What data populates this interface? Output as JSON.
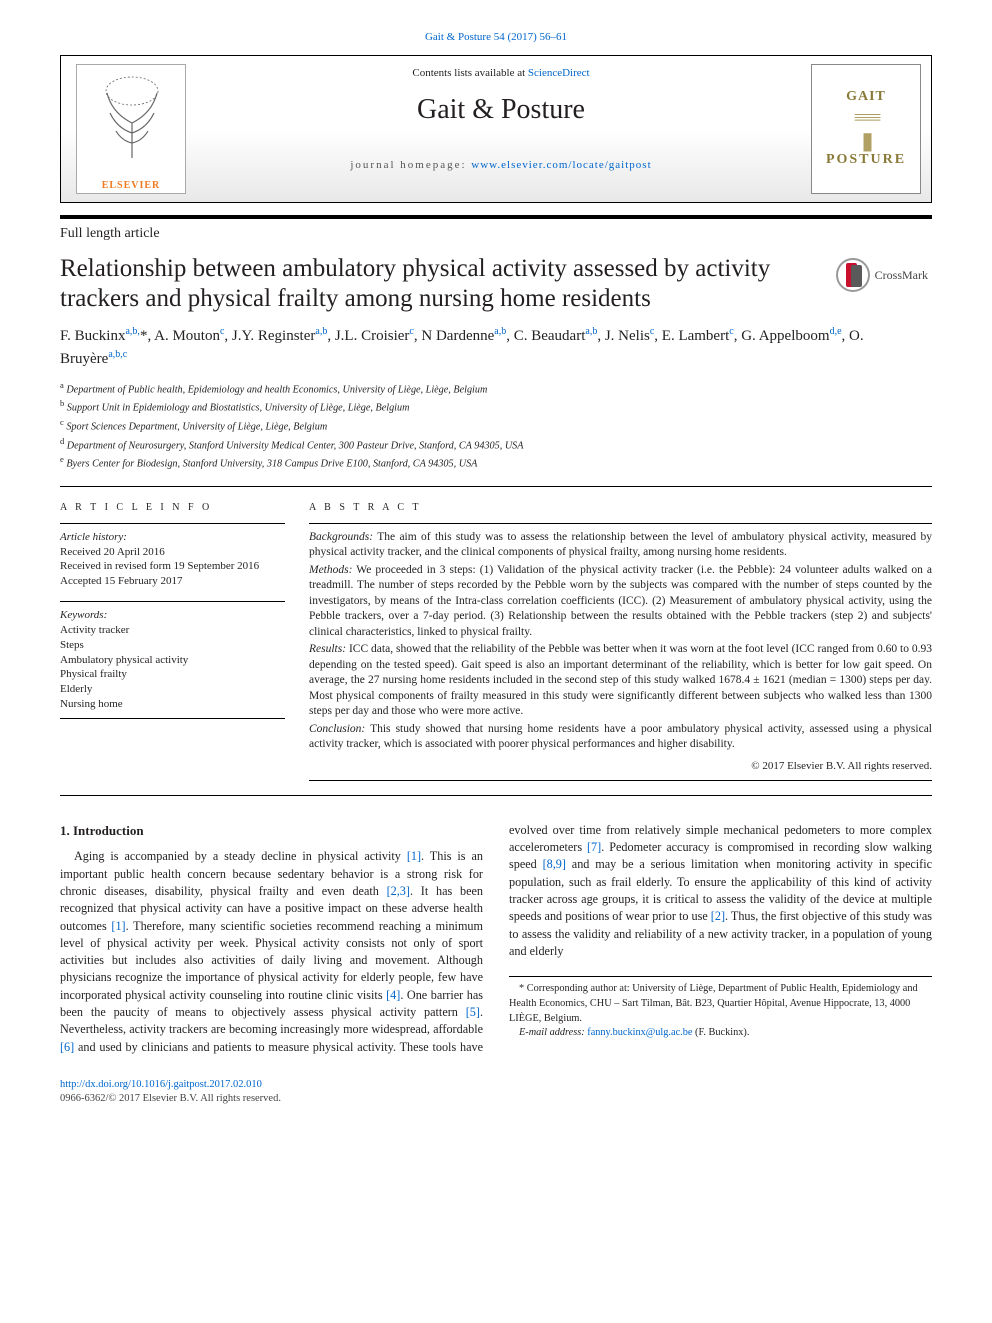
{
  "header": {
    "journal_ref": "Gait & Posture 54 (2017) 56–61",
    "contents_prefix": "Contents lists available at ",
    "contents_link": "ScienceDirect",
    "journal_name": "Gait & Posture",
    "homepage_prefix": "journal homepage: ",
    "homepage_url": "www.elsevier.com/locate/gaitpost",
    "publisher_label": "ELSEVIER",
    "cover_line1": "GAIT",
    "cover_line2": "POSTURE"
  },
  "article": {
    "type_label": "Full length article",
    "title": "Relationship between ambulatory physical activity assessed by activity trackers and physical frailty among nursing home residents",
    "crossmark_label": "CrossMark"
  },
  "authors_html": "F. Buckinx<sup>a,b,</sup>*, A. Mouton<sup>c</sup>, J.Y. Reginster<sup>a,b</sup>, J.L. Croisier<sup>c</sup>, N Dardenne<sup>a,b</sup>, C. Beaudart<sup>a,b</sup>, J. Nelis<sup>c</sup>, E. Lambert<sup>c</sup>, G. Appelboom<sup>d,e</sup>, O. Bruyère<sup>a,b,c</sup>",
  "affiliations": [
    {
      "key": "a",
      "text": "Department of Public health, Epidemiology and health Economics, University of Liège, Liège, Belgium"
    },
    {
      "key": "b",
      "text": "Support Unit in Epidemiology and Biostatistics, University of Liège, Liège, Belgium"
    },
    {
      "key": "c",
      "text": "Sport Sciences Department, University of Liège, Liège, Belgium"
    },
    {
      "key": "d",
      "text": "Department of Neurosurgery, Stanford University Medical Center, 300 Pasteur Drive, Stanford, CA 94305, USA"
    },
    {
      "key": "e",
      "text": "Byers Center for Biodesign, Stanford University, 318 Campus Drive E100, Stanford, CA 94305, USA"
    }
  ],
  "info": {
    "heading": "A R T I C L E   I N F O",
    "history_label": "Article history:",
    "received": "Received 20 April 2016",
    "revised": "Received in revised form 19 September 2016",
    "accepted": "Accepted 15 February 2017",
    "keywords_label": "Keywords:",
    "keywords": [
      "Activity tracker",
      "Steps",
      "Ambulatory physical activity",
      "Physical frailty",
      "Elderly",
      "Nursing home"
    ]
  },
  "abstract": {
    "heading": "A B S T R A C T",
    "sections": [
      {
        "label": "Backgrounds:",
        "text": " The aim of this study was to assess the relationship between the level of ambulatory physical activity, measured by physical activity tracker, and the clinical components of physical frailty, among nursing home residents."
      },
      {
        "label": "Methods:",
        "text": " We proceeded in 3 steps: (1) Validation of the physical activity tracker (i.e. the Pebble): 24 volunteer adults walked on a treadmill. The number of steps recorded by the Pebble worn by the subjects was compared with the number of steps counted by the investigators, by means of the Intra-class correlation coefficients (ICC). (2) Measurement of ambulatory physical activity, using the Pebble trackers, over a 7-day period. (3) Relationship between the results obtained with the Pebble trackers (step 2) and subjects' clinical characteristics, linked to physical frailty."
      },
      {
        "label": "Results:",
        "text": " ICC data, showed that the reliability of the Pebble was better when it was worn at the foot level (ICC ranged from 0.60 to 0.93 depending on the tested speed). Gait speed is also an important determinant of the reliability, which is better for low gait speed. On average, the 27 nursing home residents included in the second step of this study walked 1678.4 ± 1621 (median = 1300) steps per day. Most physical components of frailty measured in this study were significantly different between subjects who walked less than 1300 steps per day and those who were more active."
      },
      {
        "label": "Conclusion:",
        "text": " This study showed that nursing home residents have a poor ambulatory physical activity, assessed using a physical activity tracker, which is associated with poorer physical performances and higher disability."
      }
    ],
    "copyright": "© 2017 Elsevier B.V. All rights reserved."
  },
  "body": {
    "intro_heading": "1. Introduction",
    "para1_pre": "Aging is accompanied by a steady decline in physical activity ",
    "ref1": "[1]",
    "para1_mid1": ". This is an important public health concern because sedentary behavior is a strong risk for chronic diseases, disability, physical frailty and even death ",
    "ref23": "[2,3]",
    "para1_mid2": ". It has been recognized that physical activity can have a positive impact on these adverse health outcomes ",
    "ref1b": "[1]",
    "para1_mid3": ". Therefore, many scientific societies recommend reaching a minimum level of physical activity per week. Physical activity consists not only of sport activities but includes also activities of daily living and movement. Although physicians ",
    "para2_pre": "recognize the importance of physical activity for elderly people, few have incorporated physical activity counseling into routine clinic visits ",
    "ref4": "[4]",
    "para2_m1": ". One barrier has been the paucity of means to objectively assess physical activity pattern ",
    "ref5": "[5]",
    "para2_m2": ". Nevertheless, activity trackers are becoming increasingly more widespread, affordable ",
    "ref6": "[6]",
    "para2_m3": " and used by clinicians and patients to measure physical activity. These tools have evolved over time from relatively simple mechanical pedometers to more complex accelerometers ",
    "ref7": "[7]",
    "para2_m4": ". Pedometer accuracy is compromised in recording slow walking speed ",
    "ref89": "[8,9]",
    "para2_m5": " and may be a serious limitation when monitoring activity in specific population, such as frail elderly. To ensure the applicability of this kind of activity tracker across age groups, it is critical to assess the validity of the device at multiple speeds and positions of wear prior to use ",
    "ref2": "[2]",
    "para2_m6": ". Thus, the first objective of this study was to assess the validity and reliability of a new activity tracker, in a population of young and elderly"
  },
  "footnote": {
    "corr": "* Corresponding author at: University of Liège, Department of Public Health, Epidemiology and Health Economics, CHU – Sart Tilman, Bât. B23, Quartier Hôpital, Avenue Hippocrate, 13, 4000 LIÈGE, Belgium.",
    "email_label": "E-mail address: ",
    "email": "fanny.buckinx@ulg.ac.be",
    "email_suffix": " (F. Buckinx)."
  },
  "doi": {
    "url": "http://dx.doi.org/10.1016/j.gaitpost.2017.02.010",
    "issn_line": "0966-6362/© 2017 Elsevier B.V. All rights reserved."
  },
  "colors": {
    "link": "#0066cc",
    "elsevier_orange": "#f27b21",
    "crossmark_red": "#c8102e",
    "rule": "#000000"
  },
  "typography": {
    "body_font": "Times New Roman",
    "title_size_pt": 19,
    "journal_name_size_pt": 21,
    "body_size_pt": 9,
    "abstract_size_pt": 8.5
  }
}
